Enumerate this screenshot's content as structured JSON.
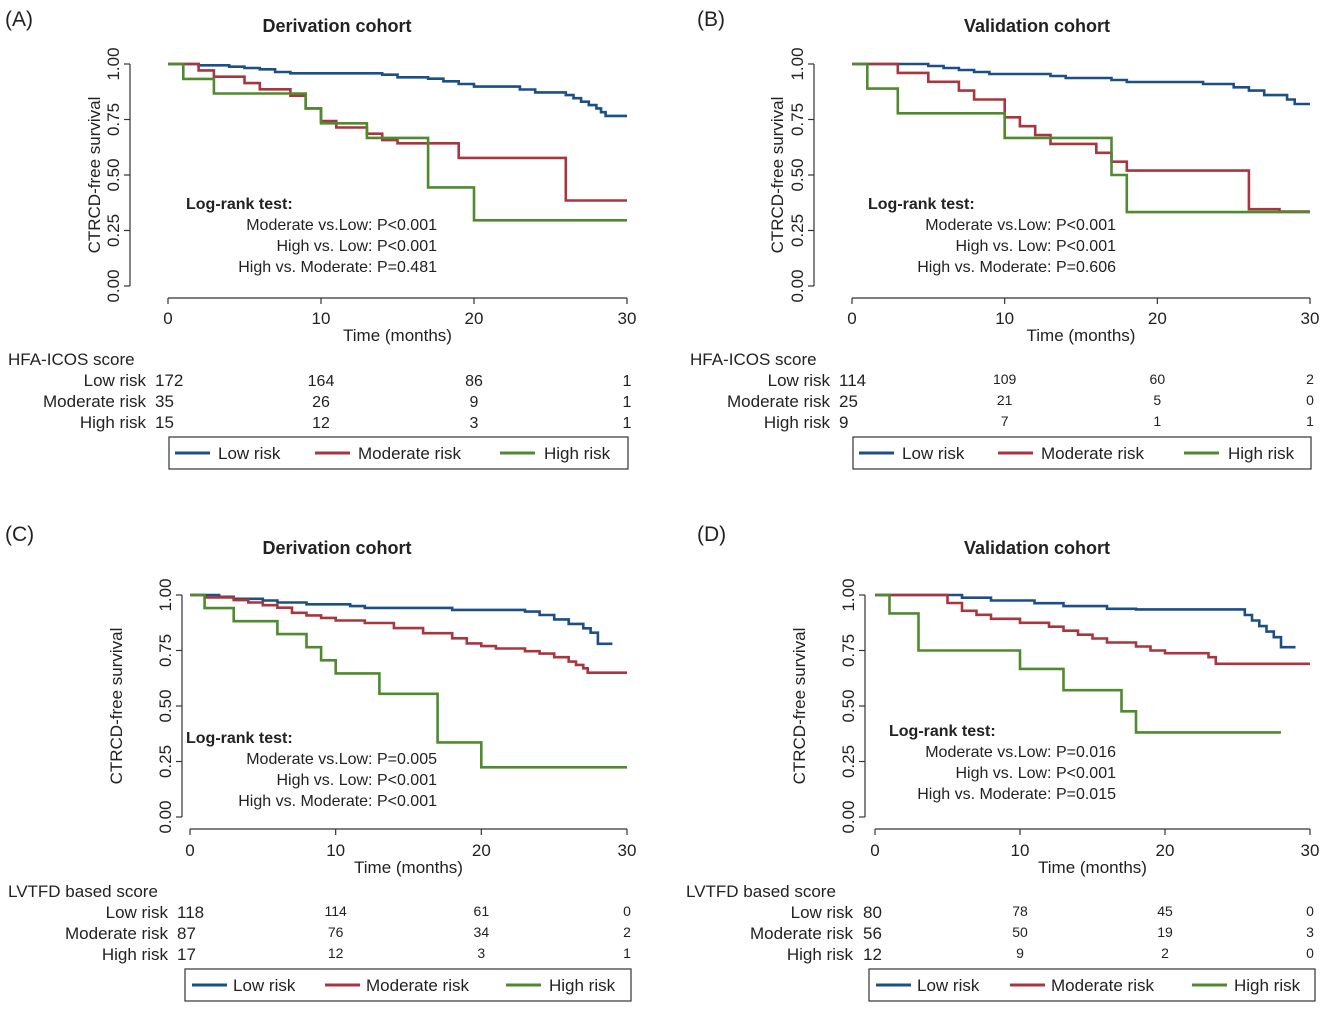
{
  "colors": {
    "low": "#1b4f86",
    "moderate": "#a8363f",
    "high": "#4f8a2e",
    "axis": "#333333"
  },
  "legend_labels": [
    "Low risk",
    "Moderate risk",
    "High risk"
  ],
  "axis_texts": {
    "ylabel": "CTRCD-free survival",
    "xlabel": "Time (months)"
  },
  "chart_data": [
    {
      "panel": "(A)",
      "type": "line",
      "title": "Derivation cohort",
      "xlabel": "Time (months)",
      "ylabel": "CTRCD-free survival",
      "xlim": [
        0,
        30
      ],
      "ylim": [
        0,
        1
      ],
      "xticks": [
        "0",
        "10",
        "20",
        "30"
      ],
      "yticks": [
        "0.00",
        "0.25",
        "0.50",
        "0.75",
        "1.00"
      ],
      "logrank": [
        "Log-rank test:",
        "Moderate vs.Low: P<0.001",
        "High vs. Low: P<0.001",
        "High vs. Moderate: P=0.481"
      ],
      "series": [
        {
          "name": "Low risk",
          "points": [
            [
              0,
              1
            ],
            [
              2,
              0.994
            ],
            [
              4,
              0.988
            ],
            [
              5,
              0.982
            ],
            [
              6,
              0.976
            ],
            [
              7,
              0.964
            ],
            [
              8,
              0.958
            ],
            [
              14,
              0.952
            ],
            [
              15,
              0.94
            ],
            [
              17,
              0.934
            ],
            [
              18,
              0.922
            ],
            [
              19,
              0.91
            ],
            [
              20,
              0.898
            ],
            [
              23,
              0.885
            ],
            [
              24,
              0.872
            ],
            [
              26,
              0.86
            ],
            [
              26.5,
              0.846
            ],
            [
              27,
              0.83
            ],
            [
              27.5,
              0.815
            ],
            [
              28,
              0.8
            ],
            [
              28.3,
              0.783
            ],
            [
              28.6,
              0.766
            ],
            [
              30,
              0.766
            ]
          ]
        },
        {
          "name": "Moderate risk",
          "points": [
            [
              0,
              1
            ],
            [
              2,
              0.971
            ],
            [
              3,
              0.943
            ],
            [
              5,
              0.914
            ],
            [
              6,
              0.886
            ],
            [
              8,
              0.857
            ],
            [
              9,
              0.8
            ],
            [
              10,
              0.743
            ],
            [
              11,
              0.714
            ],
            [
              13,
              0.686
            ],
            [
              14,
              0.657
            ],
            [
              15,
              0.643
            ],
            [
              19,
              0.577
            ],
            [
              26,
              0.577
            ],
            [
              26,
              0.385
            ],
            [
              30,
              0.385
            ]
          ]
        },
        {
          "name": "High risk",
          "points": [
            [
              0,
              1
            ],
            [
              1,
              0.933
            ],
            [
              3,
              0.867
            ],
            [
              8,
              0.867
            ],
            [
              9,
              0.8
            ],
            [
              10,
              0.8
            ],
            [
              10,
              0.733
            ],
            [
              13,
              0.733
            ],
            [
              13,
              0.667
            ],
            [
              17,
              0.667
            ],
            [
              17,
              0.444
            ],
            [
              20,
              0.444
            ],
            [
              20,
              0.296
            ],
            [
              30,
              0.296
            ]
          ]
        }
      ],
      "risk_table": {
        "title": "HFA-ICOS score",
        "rows": [
          {
            "label": "Low risk",
            "counts": [
              "172",
              "164",
              "86",
              "1"
            ]
          },
          {
            "label": "Moderate risk",
            "counts": [
              "35",
              "26",
              "9",
              "1"
            ]
          },
          {
            "label": "High risk",
            "counts": [
              "15",
              "12",
              "3",
              "1"
            ]
          }
        ]
      }
    },
    {
      "panel": "(B)",
      "type": "line",
      "title": "Validation cohort",
      "xlabel": "Time (months)",
      "ylabel": "CTRCD-free survival",
      "xlim": [
        0,
        30
      ],
      "ylim": [
        0,
        1
      ],
      "xticks": [
        "0",
        "10",
        "20",
        "30"
      ],
      "yticks": [
        "0.00",
        "0.25",
        "0.50",
        "0.75",
        "1.00"
      ],
      "logrank": [
        "Log-rank test:",
        "Moderate vs.Low: P<0.001",
        "High vs. Low: P<0.001",
        "High vs. Moderate: P=0.606"
      ],
      "series": [
        {
          "name": "Low risk",
          "points": [
            [
              0,
              1
            ],
            [
              5,
              0.991
            ],
            [
              6,
              0.982
            ],
            [
              7,
              0.973
            ],
            [
              8,
              0.964
            ],
            [
              9,
              0.955
            ],
            [
              13,
              0.946
            ],
            [
              14,
              0.937
            ],
            [
              17,
              0.928
            ],
            [
              18,
              0.919
            ],
            [
              23,
              0.91
            ],
            [
              25,
              0.895
            ],
            [
              26,
              0.88
            ],
            [
              27,
              0.86
            ],
            [
              28.5,
              0.84
            ],
            [
              29,
              0.82
            ],
            [
              30,
              0.82
            ]
          ]
        },
        {
          "name": "Moderate risk",
          "points": [
            [
              0,
              1
            ],
            [
              3,
              0.96
            ],
            [
              5,
              0.92
            ],
            [
              7,
              0.88
            ],
            [
              8,
              0.84
            ],
            [
              10,
              0.8
            ],
            [
              10,
              0.76
            ],
            [
              11,
              0.72
            ],
            [
              12,
              0.68
            ],
            [
              13,
              0.64
            ],
            [
              16,
              0.6
            ],
            [
              17,
              0.56
            ],
            [
              18,
              0.52
            ],
            [
              26,
              0.52
            ],
            [
              26,
              0.346
            ],
            [
              28,
              0.346
            ],
            [
              28,
              0.335
            ],
            [
              30,
              0.335
            ]
          ]
        },
        {
          "name": "High risk",
          "points": [
            [
              0,
              1
            ],
            [
              1,
              0.889
            ],
            [
              3,
              0.889
            ],
            [
              3,
              0.778
            ],
            [
              10,
              0.778
            ],
            [
              10,
              0.667
            ],
            [
              17,
              0.667
            ],
            [
              17,
              0.5
            ],
            [
              18,
              0.5
            ],
            [
              18,
              0.333
            ],
            [
              30,
              0.333
            ]
          ]
        }
      ],
      "risk_table": {
        "title": "HFA-ICOS score",
        "rows": [
          {
            "label": "Low risk",
            "counts": [
              "114",
              "109",
              "60",
              "2"
            ]
          },
          {
            "label": "Moderate risk",
            "counts": [
              "25",
              "21",
              "5",
              "0"
            ]
          },
          {
            "label": "High risk",
            "counts": [
              "9",
              "7",
              "1",
              "1"
            ]
          }
        ]
      }
    },
    {
      "panel": "(C)",
      "type": "line",
      "title": "Derivation cohort",
      "xlabel": "Time (months)",
      "ylabel": "CTRCD-free survival",
      "xlim": [
        0,
        30
      ],
      "ylim": [
        0,
        1
      ],
      "xticks": [
        "0",
        "10",
        "20",
        "30"
      ],
      "yticks": [
        "0.00",
        "0.25",
        "0.50",
        "0.75",
        "1.00"
      ],
      "logrank": [
        "Log-rank test:",
        "Moderate vs.Low: P=0.005",
        "High vs. Low: P<0.001",
        "High vs. Moderate: P<0.001"
      ],
      "series": [
        {
          "name": "Low risk",
          "points": [
            [
              0,
              1
            ],
            [
              2,
              0.992
            ],
            [
              3,
              0.983
            ],
            [
              5,
              0.975
            ],
            [
              6,
              0.966
            ],
            [
              8,
              0.958
            ],
            [
              11,
              0.95
            ],
            [
              12,
              0.942
            ],
            [
              18,
              0.933
            ],
            [
              23,
              0.925
            ],
            [
              24,
              0.91
            ],
            [
              25,
              0.89
            ],
            [
              26,
              0.87
            ],
            [
              27,
              0.85
            ],
            [
              27.5,
              0.83
            ],
            [
              28,
              0.78
            ],
            [
              29,
              0.78
            ]
          ]
        },
        {
          "name": "Moderate risk",
          "points": [
            [
              0,
              1
            ],
            [
              1,
              0.989
            ],
            [
              3,
              0.977
            ],
            [
              4,
              0.966
            ],
            [
              5,
              0.954
            ],
            [
              6,
              0.943
            ],
            [
              7,
              0.92
            ],
            [
              8,
              0.908
            ],
            [
              9,
              0.897
            ],
            [
              10,
              0.885
            ],
            [
              12,
              0.874
            ],
            [
              14,
              0.851
            ],
            [
              16,
              0.828
            ],
            [
              18,
              0.805
            ],
            [
              19,
              0.782
            ],
            [
              20,
              0.77
            ],
            [
              21,
              0.759
            ],
            [
              23,
              0.747
            ],
            [
              24,
              0.736
            ],
            [
              25,
              0.72
            ],
            [
              26,
              0.7
            ],
            [
              26.5,
              0.685
            ],
            [
              27,
              0.67
            ],
            [
              27.3,
              0.65
            ],
            [
              30,
              0.65
            ]
          ]
        },
        {
          "name": "High risk",
          "points": [
            [
              0,
              1
            ],
            [
              1,
              0.941
            ],
            [
              3,
              0.882
            ],
            [
              6,
              0.824
            ],
            [
              8,
              0.765
            ],
            [
              9,
              0.706
            ],
            [
              10,
              0.647
            ],
            [
              13,
              0.647
            ],
            [
              13,
              0.555
            ],
            [
              17,
              0.555
            ],
            [
              17,
              0.336
            ],
            [
              20,
              0.336
            ],
            [
              20,
              0.224
            ],
            [
              30,
              0.224
            ]
          ]
        }
      ],
      "risk_table": {
        "title": "LVTFD based score",
        "rows": [
          {
            "label": "Low risk",
            "counts": [
              "118",
              "114",
              "61",
              "0"
            ]
          },
          {
            "label": "Moderate risk",
            "counts": [
              "87",
              "76",
              "34",
              "2"
            ]
          },
          {
            "label": "High risk",
            "counts": [
              "17",
              "12",
              "3",
              "1"
            ]
          }
        ]
      }
    },
    {
      "panel": "(D)",
      "type": "line",
      "title": "Validation cohort",
      "xlabel": "Time (months)",
      "ylabel": "CTRCD-free survival",
      "xlim": [
        0,
        30
      ],
      "ylim": [
        0,
        1
      ],
      "xticks": [
        "0",
        "10",
        "20",
        "30"
      ],
      "yticks": [
        "0.00",
        "0.25",
        "0.50",
        "0.75",
        "1.00"
      ],
      "logrank": [
        "Log-rank test:",
        "Moderate vs.Low: P=0.016",
        "High vs. Low: P<0.001",
        "High vs. Moderate: P=0.015"
      ],
      "series": [
        {
          "name": "Low risk",
          "points": [
            [
              0,
              1
            ],
            [
              6,
              0.988
            ],
            [
              8,
              0.975
            ],
            [
              11,
              0.963
            ],
            [
              13,
              0.95
            ],
            [
              16,
              0.938
            ],
            [
              18,
              0.935
            ],
            [
              25,
              0.935
            ],
            [
              25.5,
              0.91
            ],
            [
              26,
              0.885
            ],
            [
              26.5,
              0.86
            ],
            [
              27,
              0.835
            ],
            [
              27.5,
              0.81
            ],
            [
              28,
              0.765
            ],
            [
              29,
              0.765
            ]
          ]
        },
        {
          "name": "Moderate risk",
          "points": [
            [
              0,
              1
            ],
            [
              5,
              0.964
            ],
            [
              6,
              0.929
            ],
            [
              7,
              0.911
            ],
            [
              8,
              0.893
            ],
            [
              10,
              0.875
            ],
            [
              12,
              0.857
            ],
            [
              13,
              0.839
            ],
            [
              14,
              0.821
            ],
            [
              15,
              0.804
            ],
            [
              16,
              0.786
            ],
            [
              18,
              0.768
            ],
            [
              19,
              0.75
            ],
            [
              20,
              0.738
            ],
            [
              23,
              0.72
            ],
            [
              23.5,
              0.69
            ],
            [
              30,
              0.69
            ]
          ]
        },
        {
          "name": "High risk",
          "points": [
            [
              0,
              1
            ],
            [
              1,
              0.917
            ],
            [
              3,
              0.75
            ],
            [
              10,
              0.75
            ],
            [
              10,
              0.667
            ],
            [
              13,
              0.667
            ],
            [
              13,
              0.571
            ],
            [
              17,
              0.571
            ],
            [
              17,
              0.476
            ],
            [
              18,
              0.476
            ],
            [
              18,
              0.381
            ],
            [
              28,
              0.381
            ]
          ]
        }
      ],
      "risk_table": {
        "title": "LVTFD based score",
        "rows": [
          {
            "label": "Low risk",
            "counts": [
              "80",
              "78",
              "45",
              "0"
            ]
          },
          {
            "label": "Moderate risk",
            "counts": [
              "56",
              "50",
              "19",
              "3"
            ]
          },
          {
            "label": "High risk",
            "counts": [
              "12",
              "9",
              "2",
              "0"
            ]
          }
        ]
      }
    }
  ]
}
